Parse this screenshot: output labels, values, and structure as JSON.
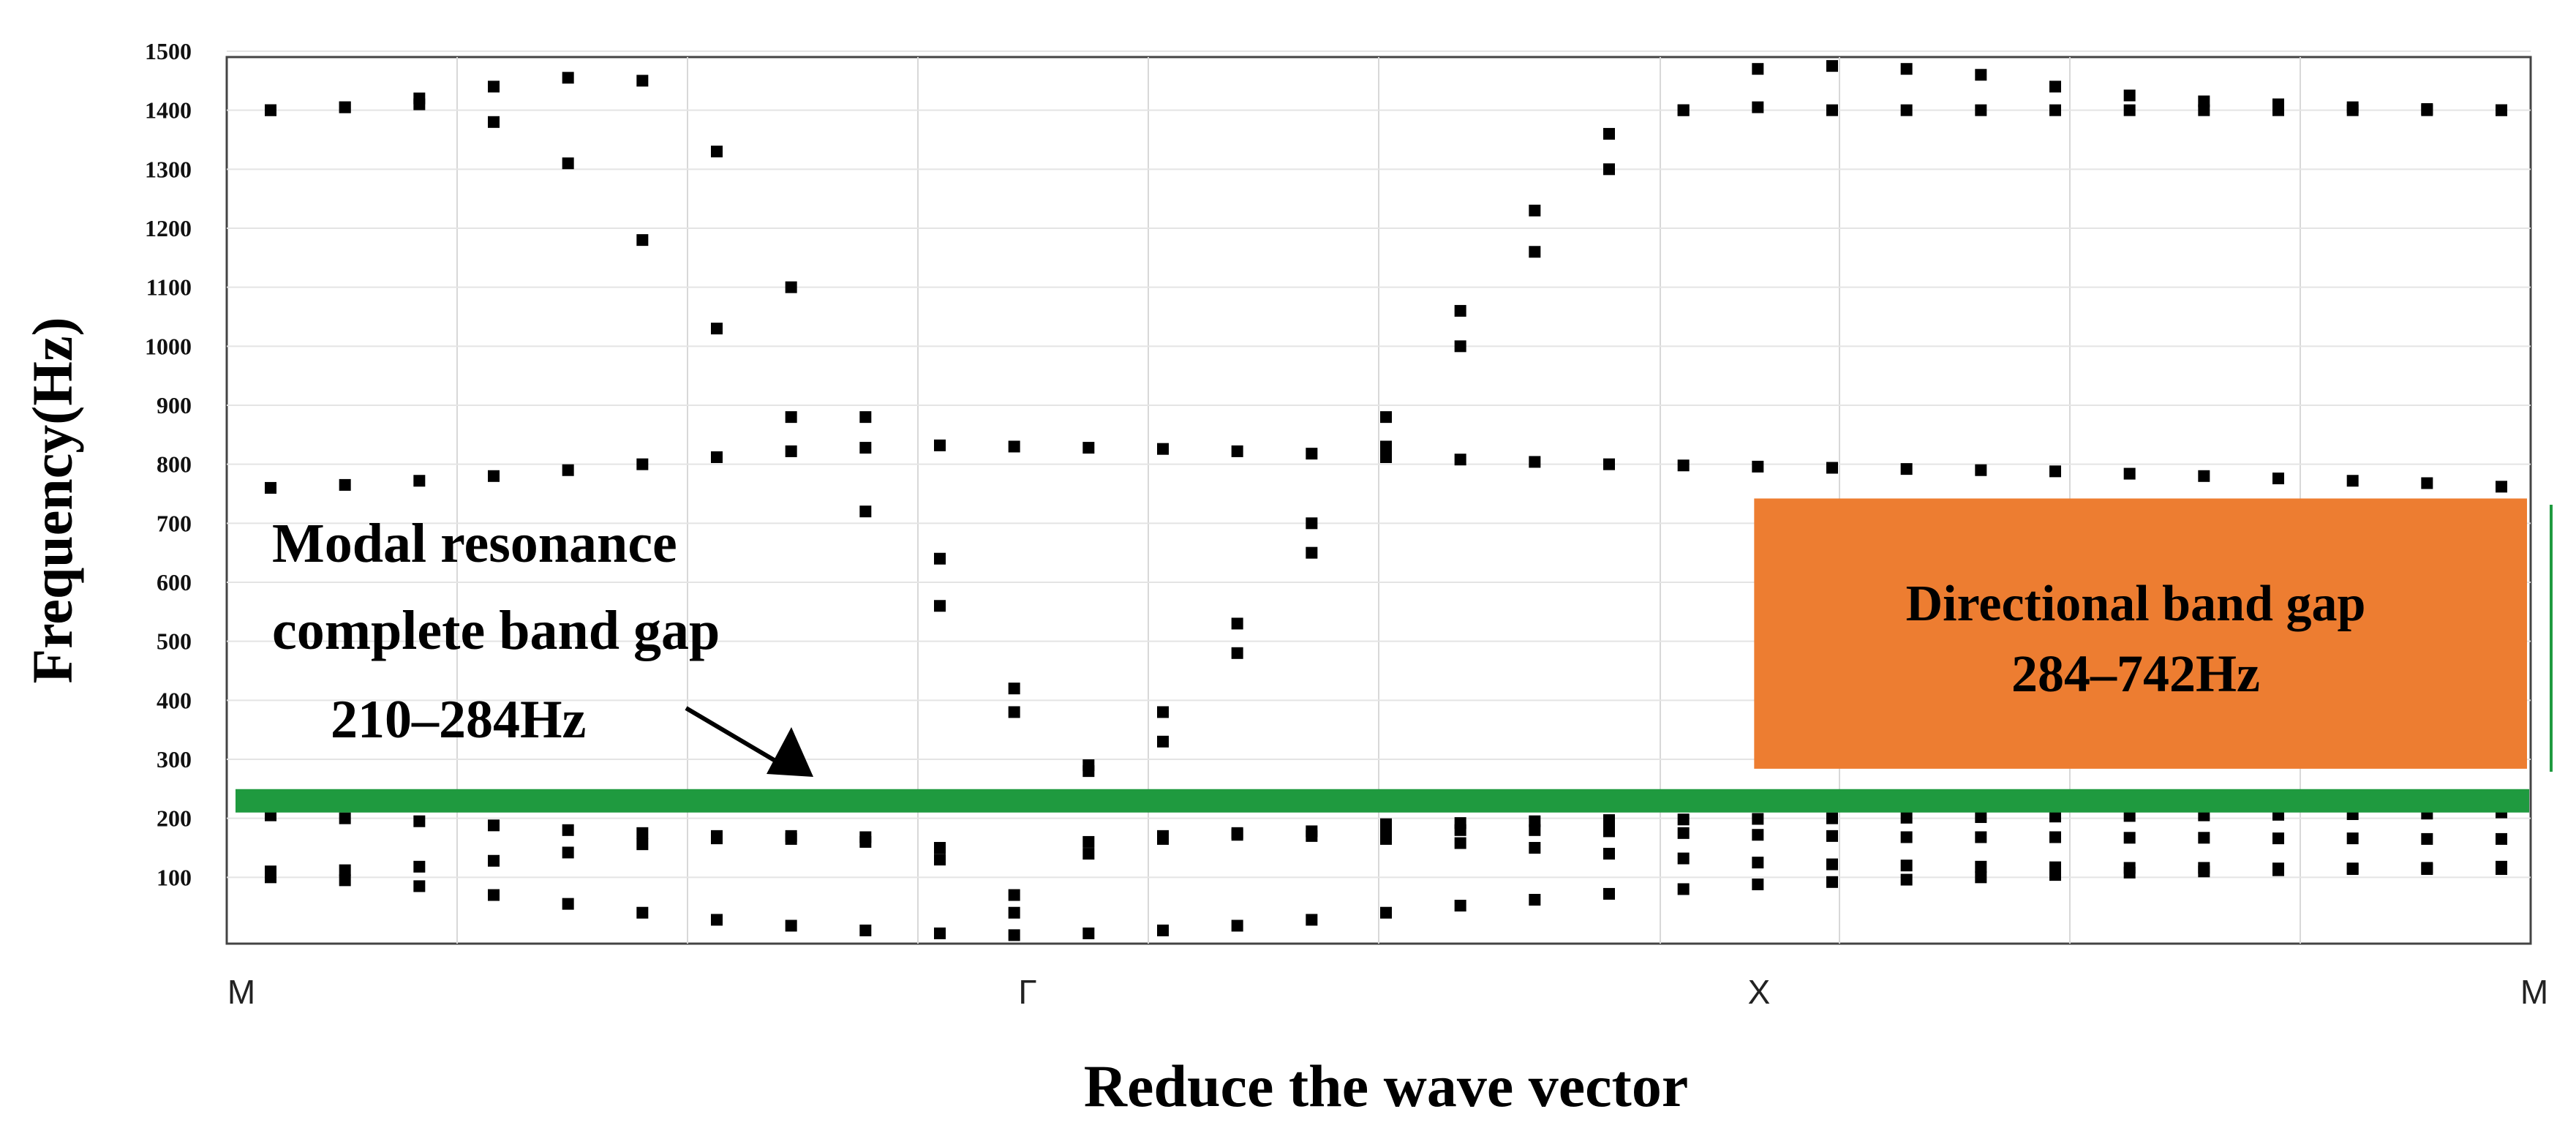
{
  "chart_data": {
    "type": "scatter",
    "xlabel": "Reduce the wave vector",
    "ylabel": "Frequency(Hz)",
    "x_ticks": [
      "M",
      "Γ",
      "X",
      "M"
    ],
    "y_ticks": [
      100,
      200,
      300,
      400,
      500,
      600,
      700,
      800,
      900,
      1000,
      1100,
      1200,
      1300,
      1400,
      1500
    ],
    "ylim": [
      0,
      1500
    ],
    "grid": true,
    "series": [
      {
        "x": [
          0.0,
          0.1,
          0.2,
          0.3,
          0.4,
          0.5,
          0.6,
          0.7,
          0.8,
          0.9,
          1.0,
          1.1,
          1.2,
          1.3,
          1.4,
          1.5,
          1.6,
          1.7,
          1.8,
          1.9,
          2.0,
          2.1,
          2.2,
          2.3,
          2.4,
          2.5,
          2.6,
          2.7,
          2.8,
          2.9,
          3.0
        ],
        "y": [
          100,
          95,
          85,
          70,
          55,
          40,
          28,
          18,
          10,
          5,
          2,
          5,
          10,
          18,
          28,
          40,
          52,
          62,
          72,
          80,
          88,
          92,
          96,
          100,
          104,
          108,
          110,
          112,
          114,
          116,
          118
        ]
      },
      {
        "x": [
          0.0,
          0.1,
          0.2,
          0.3,
          0.4,
          0.5,
          0.6,
          0.7,
          0.8,
          0.9,
          1.0,
          1.1,
          1.2,
          1.3,
          1.4,
          1.5,
          1.6,
          1.7,
          1.8,
          1.9,
          2.0,
          2.1,
          2.2,
          2.3,
          2.4,
          2.5,
          2.6,
          2.7,
          2.8,
          2.9,
          3.0
        ],
        "y": [
          110,
          112,
          118,
          128,
          142,
          156,
          166,
          170,
          168,
          150,
          40,
          160,
          170,
          172,
          170,
          165,
          158,
          150,
          140,
          132,
          125,
          122,
          120,
          118,
          117,
          116,
          116,
          115,
          115,
          114,
          114
        ]
      },
      {
        "x": [
          0.0,
          0.1,
          0.2,
          0.3,
          0.4,
          0.5,
          0.6,
          0.7,
          0.8,
          0.9,
          1.0,
          1.1,
          1.2,
          1.3,
          1.4,
          1.5,
          1.6,
          1.7,
          1.8,
          1.9,
          2.0,
          2.1,
          2.2,
          2.3,
          2.4,
          2.5,
          2.6,
          2.7,
          2.8,
          2.9,
          3.0
        ],
        "y": [
          205,
          200,
          195,
          188,
          180,
          175,
          170,
          165,
          160,
          130,
          70,
          140,
          165,
          175,
          178,
          180,
          180,
          180,
          178,
          175,
          172,
          170,
          168,
          168,
          168,
          167,
          167,
          166,
          166,
          165,
          165
        ]
      },
      {
        "x": [
          1.5,
          1.6,
          1.7,
          1.8,
          1.9,
          2.0,
          2.1,
          2.2,
          2.3,
          2.4,
          2.5,
          2.6,
          2.7,
          2.8,
          2.9,
          3.0
        ],
        "y": [
          190,
          192,
          195,
          197,
          198,
          199,
          200,
          201,
          202,
          203,
          204,
          205,
          206,
          207,
          208,
          210
        ]
      },
      {
        "x": [
          0.0,
          0.1,
          0.2,
          0.3,
          0.4,
          0.5,
          0.6,
          0.7,
          0.8,
          0.9,
          1.0,
          1.1,
          1.2,
          1.3,
          1.4,
          1.5,
          1.6,
          1.7,
          1.8,
          1.9,
          2.0,
          2.1,
          2.2,
          2.3,
          2.4,
          2.5,
          2.6,
          2.7,
          2.8,
          2.9,
          3.0
        ],
        "y": [
          760,
          765,
          772,
          780,
          790,
          800,
          812,
          822,
          828,
          832,
          830,
          828,
          826,
          822,
          818,
          812,
          808,
          804,
          800,
          798,
          796,
          794,
          792,
          790,
          788,
          784,
          780,
          776,
          772,
          768,
          762
        ]
      },
      {
        "x": [
          0.0,
          0.1,
          0.2,
          0.3,
          0.4,
          0.5,
          0.6,
          0.7,
          0.8,
          0.9,
          1.0,
          1.1,
          1.2,
          1.3,
          1.4,
          1.5,
          1.6,
          1.7,
          1.8,
          1.9,
          2.0,
          2.1,
          2.2,
          2.3,
          2.4,
          2.5,
          2.6,
          2.7,
          2.8,
          2.9,
          3.0
        ],
        "y": [
          1400,
          1405,
          1410,
          1380,
          1310,
          1180,
          1030,
          880,
          720,
          560,
          380,
          290,
          380,
          530,
          700,
          880,
          1060,
          1230,
          1360,
          1400,
          1405,
          1400,
          1400,
          1400,
          1400,
          1400,
          1400,
          1400,
          1400,
          1400,
          1400
        ]
      },
      {
        "x": [
          0.0,
          0.1,
          0.2,
          0.3,
          0.4,
          0.5,
          0.6,
          0.7,
          0.8,
          0.9,
          1.0,
          1.1,
          1.2,
          1.3,
          1.4,
          1.5,
          1.6,
          1.7,
          1.8,
          1.9,
          2.0,
          2.1,
          2.2,
          2.3,
          2.4,
          2.5,
          2.6,
          2.7,
          2.8,
          2.9,
          3.0
        ],
        "y": [
          1400,
          1405,
          1420,
          1440,
          1455,
          1450,
          1330,
          1100,
          880,
          640,
          420,
          280,
          330,
          480,
          650,
          830,
          1000,
          1160,
          1300,
          1400,
          1470,
          1475,
          1470,
          1460,
          1440,
          1425,
          1415,
          1410,
          1405,
          1402,
          1400
        ]
      }
    ],
    "annotations": {
      "complete_gap_title_line1": "Modal resonance",
      "complete_gap_title_line2": "complete band gap",
      "complete_gap_range": "210–284Hz",
      "directional_gap_title": "Directional band gap",
      "directional_gap_range": "284–742Hz"
    },
    "complete_gap": {
      "ymin": 210,
      "ymax": 284,
      "color": "#1f9a3f"
    },
    "directional_gap": {
      "x_from": 2.0,
      "x_to": 3.0,
      "ymin": 284,
      "ymax": 742,
      "color": "#ed7d31"
    }
  }
}
